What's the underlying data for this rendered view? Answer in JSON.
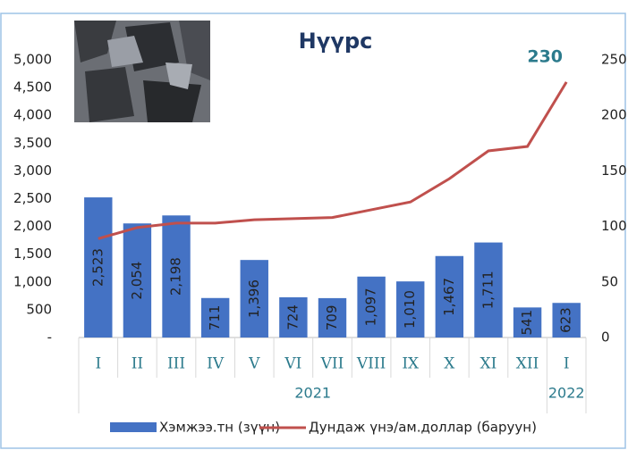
{
  "chart_data": {
    "type": "bar_line",
    "title": "Нүүрс",
    "categories": [
      "I",
      "II",
      "III",
      "IV",
      "V",
      "VI",
      "VII",
      "VIII",
      "IX",
      "X",
      "XI",
      "XII",
      "I"
    ],
    "groups": [
      "2021",
      "2022"
    ],
    "series": [
      {
        "name": "Хэмжээ.тн (зүүн)",
        "color": "#4472c4",
        "type": "bar",
        "values": [
          2523,
          2054,
          2198,
          711,
          1396,
          724,
          709,
          1097,
          1010,
          1467,
          1711,
          541,
          623
        ],
        "value_labels": [
          "2,523",
          "2,054",
          "2,198",
          "711",
          "1,396",
          "724",
          "709",
          "1,097",
          "1,010",
          "1,467",
          "1,711",
          "541",
          "623"
        ]
      },
      {
        "name": "Дундаж үнэ/ам.доллар (баруун)",
        "color": "#c0504d",
        "type": "line",
        "axis": "y2",
        "values": [
          89,
          99,
          103,
          103,
          106,
          107,
          108,
          115,
          122,
          143,
          168,
          172,
          230
        ]
      }
    ],
    "ylim": [
      0,
      5000
    ],
    "yticks": [
      {
        "value": 0,
        "label": "-"
      },
      {
        "value": 500,
        "label": "500"
      },
      {
        "value": 1000,
        "label": "1,000"
      },
      {
        "value": 1500,
        "label": "1,500"
      },
      {
        "value": 2000,
        "label": "2,000"
      },
      {
        "value": 2500,
        "label": "2,500"
      },
      {
        "value": 3000,
        "label": "3,000"
      },
      {
        "value": 3500,
        "label": "3,500"
      },
      {
        "value": 4000,
        "label": "4,000"
      },
      {
        "value": 4500,
        "label": "4,500"
      },
      {
        "value": 5000,
        "label": "5,000"
      }
    ],
    "y2lim": [
      0,
      250
    ],
    "y2ticks": [
      0,
      50,
      100,
      150,
      200,
      250
    ]
  }
}
